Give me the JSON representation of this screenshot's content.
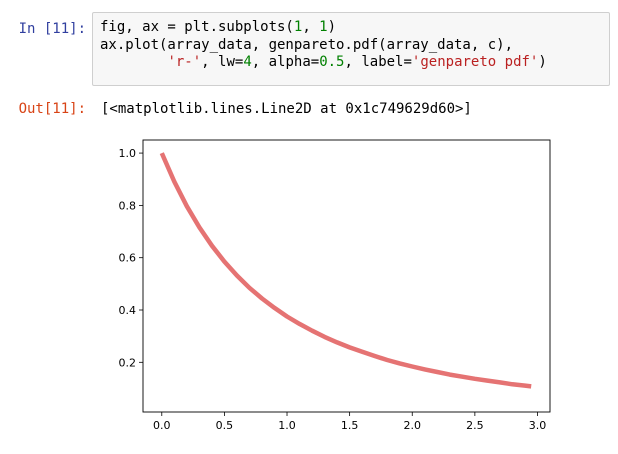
{
  "cell_in": {
    "prompt": "In [11]:",
    "lines": [
      [
        {
          "t": "fig, ax = plt.subplots(",
          "c": ""
        },
        {
          "t": "1",
          "c": "num"
        },
        {
          "t": ", ",
          "c": ""
        },
        {
          "t": "1",
          "c": "num"
        },
        {
          "t": ")",
          "c": ""
        }
      ],
      [
        {
          "t": "ax.plot(array_data, genpareto.pdf(array_data, c),",
          "c": ""
        }
      ],
      [
        {
          "t": "        ",
          "c": ""
        },
        {
          "t": "'r-'",
          "c": "str"
        },
        {
          "t": ", lw=",
          "c": ""
        },
        {
          "t": "4",
          "c": "num"
        },
        {
          "t": ", alpha=",
          "c": ""
        },
        {
          "t": "0.5",
          "c": "num"
        },
        {
          "t": ", label=",
          "c": ""
        },
        {
          "t": "'genpareto pdf'",
          "c": "str"
        },
        {
          "t": ")",
          "c": ""
        }
      ]
    ]
  },
  "cell_out": {
    "prompt": "Out[11]:",
    "text": "[<matplotlib.lines.Line2D at 0x1c749629d60>]"
  },
  "chart_data": {
    "type": "line",
    "title": "",
    "xlabel": "",
    "ylabel": "",
    "xlim": [
      -0.15,
      3.1
    ],
    "ylim": [
      0.01,
      1.05
    ],
    "xticks": [
      0.0,
      0.5,
      1.0,
      1.5,
      2.0,
      2.5,
      3.0
    ],
    "yticks": [
      0.2,
      0.4,
      0.6,
      0.8,
      1.0
    ],
    "xtick_labels": [
      "0.0",
      "0.5",
      "1.0",
      "1.5",
      "2.0",
      "2.5",
      "3.0"
    ],
    "ytick_labels": [
      "0.2",
      "0.4",
      "0.6",
      "0.8",
      "1.0"
    ],
    "grid": false,
    "series": [
      {
        "color": "#e57373",
        "x": [
          0.0,
          0.1,
          0.2,
          0.3,
          0.4,
          0.5,
          0.6,
          0.7,
          0.8,
          0.9,
          1.0,
          1.1,
          1.2,
          1.3,
          1.4,
          1.5,
          1.6,
          1.7,
          1.8,
          1.9,
          2.0,
          2.1,
          2.2,
          2.3,
          2.4,
          2.5,
          2.6,
          2.7,
          2.8,
          2.9,
          2.95
        ],
        "y": [
          1.0,
          0.891,
          0.797,
          0.716,
          0.646,
          0.585,
          0.532,
          0.485,
          0.444,
          0.408,
          0.375,
          0.347,
          0.321,
          0.297,
          0.276,
          0.257,
          0.24,
          0.224,
          0.209,
          0.196,
          0.184,
          0.173,
          0.163,
          0.153,
          0.145,
          0.137,
          0.13,
          0.123,
          0.116,
          0.111,
          0.108
        ]
      }
    ]
  }
}
